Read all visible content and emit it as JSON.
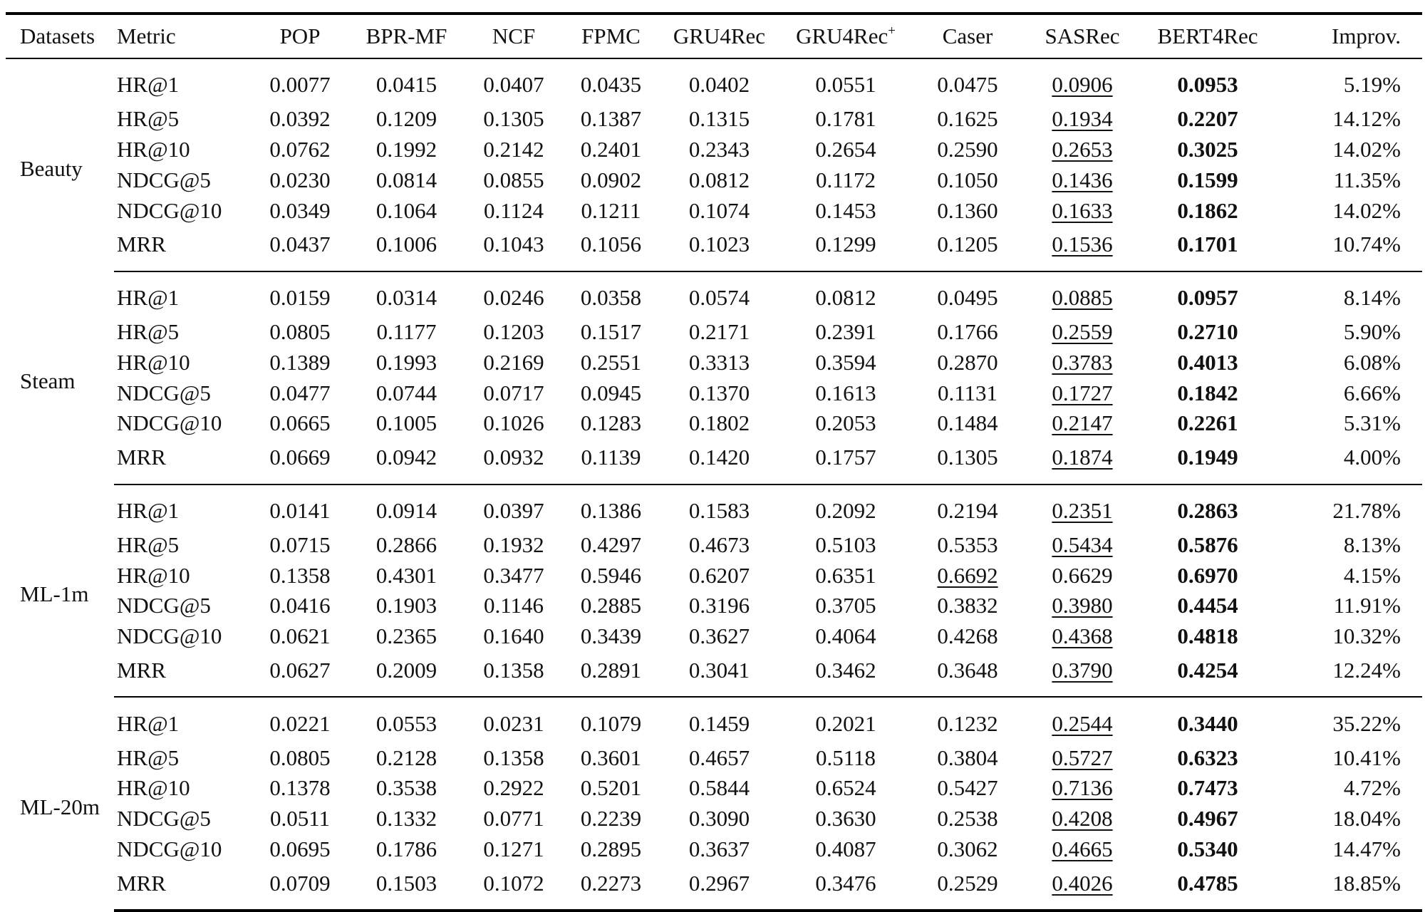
{
  "columns": [
    "Datasets",
    "Metric",
    "POP",
    "BPR-MF",
    "NCF",
    "FPMC",
    "GRU4Rec",
    "GRU4Rec",
    "Caser",
    "SASRec",
    "BERT4Rec",
    "Improv."
  ],
  "gru4rec_plus_superscript": "+",
  "groups": [
    {
      "dataset": "Beauty",
      "rows": [
        {
          "metric": "HR@1",
          "values": [
            "0.0077",
            "0.0415",
            "0.0407",
            "0.0435",
            "0.0402",
            "0.0551",
            "0.0475",
            "0.0906",
            "0.0953"
          ],
          "improv": "5.19%",
          "underline": 7
        },
        {
          "metric": "HR@5",
          "values": [
            "0.0392",
            "0.1209",
            "0.1305",
            "0.1387",
            "0.1315",
            "0.1781",
            "0.1625",
            "0.1934",
            "0.2207"
          ],
          "improv": "14.12%",
          "underline": 7
        },
        {
          "metric": "HR@10",
          "values": [
            "0.0762",
            "0.1992",
            "0.2142",
            "0.2401",
            "0.2343",
            "0.2654",
            "0.2590",
            "0.2653",
            "0.3025"
          ],
          "improv": "14.02%",
          "underline": 7
        },
        {
          "metric": "NDCG@5",
          "values": [
            "0.0230",
            "0.0814",
            "0.0855",
            "0.0902",
            "0.0812",
            "0.1172",
            "0.1050",
            "0.1436",
            "0.1599"
          ],
          "improv": "11.35%",
          "underline": 7
        },
        {
          "metric": "NDCG@10",
          "values": [
            "0.0349",
            "0.1064",
            "0.1124",
            "0.1211",
            "0.1074",
            "0.1453",
            "0.1360",
            "0.1633",
            "0.1862"
          ],
          "improv": "14.02%",
          "underline": 7
        },
        {
          "metric": "MRR",
          "values": [
            "0.0437",
            "0.1006",
            "0.1043",
            "0.1056",
            "0.1023",
            "0.1299",
            "0.1205",
            "0.1536",
            "0.1701"
          ],
          "improv": "10.74%",
          "underline": 7
        }
      ]
    },
    {
      "dataset": "Steam",
      "rows": [
        {
          "metric": "HR@1",
          "values": [
            "0.0159",
            "0.0314",
            "0.0246",
            "0.0358",
            "0.0574",
            "0.0812",
            "0.0495",
            "0.0885",
            "0.0957"
          ],
          "improv": "8.14%",
          "underline": 7
        },
        {
          "metric": "HR@5",
          "values": [
            "0.0805",
            "0.1177",
            "0.1203",
            "0.1517",
            "0.2171",
            "0.2391",
            "0.1766",
            "0.2559",
            "0.2710"
          ],
          "improv": "5.90%",
          "underline": 7
        },
        {
          "metric": "HR@10",
          "values": [
            "0.1389",
            "0.1993",
            "0.2169",
            "0.2551",
            "0.3313",
            "0.3594",
            "0.2870",
            "0.3783",
            "0.4013"
          ],
          "improv": "6.08%",
          "underline": 7
        },
        {
          "metric": "NDCG@5",
          "values": [
            "0.0477",
            "0.0744",
            "0.0717",
            "0.0945",
            "0.1370",
            "0.1613",
            "0.1131",
            "0.1727",
            "0.1842"
          ],
          "improv": "6.66%",
          "underline": 7
        },
        {
          "metric": "NDCG@10",
          "values": [
            "0.0665",
            "0.1005",
            "0.1026",
            "0.1283",
            "0.1802",
            "0.2053",
            "0.1484",
            "0.2147",
            "0.2261"
          ],
          "improv": "5.31%",
          "underline": 7
        },
        {
          "metric": "MRR",
          "values": [
            "0.0669",
            "0.0942",
            "0.0932",
            "0.1139",
            "0.1420",
            "0.1757",
            "0.1305",
            "0.1874",
            "0.1949"
          ],
          "improv": "4.00%",
          "underline": 7
        }
      ]
    },
    {
      "dataset": "ML-1m",
      "rows": [
        {
          "metric": "HR@1",
          "values": [
            "0.0141",
            "0.0914",
            "0.0397",
            "0.1386",
            "0.1583",
            "0.2092",
            "0.2194",
            "0.2351",
            "0.2863"
          ],
          "improv": "21.78%",
          "underline": 7
        },
        {
          "metric": "HR@5",
          "values": [
            "0.0715",
            "0.2866",
            "0.1932",
            "0.4297",
            "0.4673",
            "0.5103",
            "0.5353",
            "0.5434",
            "0.5876"
          ],
          "improv": "8.13%",
          "underline": 7
        },
        {
          "metric": "HR@10",
          "values": [
            "0.1358",
            "0.4301",
            "0.3477",
            "0.5946",
            "0.6207",
            "0.6351",
            "0.6692",
            "0.6629",
            "0.6970"
          ],
          "improv": "4.15%",
          "underline": 6
        },
        {
          "metric": "NDCG@5",
          "values": [
            "0.0416",
            "0.1903",
            "0.1146",
            "0.2885",
            "0.3196",
            "0.3705",
            "0.3832",
            "0.3980",
            "0.4454"
          ],
          "improv": "11.91%",
          "underline": 7
        },
        {
          "metric": "NDCG@10",
          "values": [
            "0.0621",
            "0.2365",
            "0.1640",
            "0.3439",
            "0.3627",
            "0.4064",
            "0.4268",
            "0.4368",
            "0.4818"
          ],
          "improv": "10.32%",
          "underline": 7
        },
        {
          "metric": "MRR",
          "values": [
            "0.0627",
            "0.2009",
            "0.1358",
            "0.2891",
            "0.3041",
            "0.3462",
            "0.3648",
            "0.3790",
            "0.4254"
          ],
          "improv": "12.24%",
          "underline": 7
        }
      ]
    },
    {
      "dataset": "ML-20m",
      "rows": [
        {
          "metric": "HR@1",
          "values": [
            "0.0221",
            "0.0553",
            "0.0231",
            "0.1079",
            "0.1459",
            "0.2021",
            "0.1232",
            "0.2544",
            "0.3440"
          ],
          "improv": "35.22%",
          "underline": 7
        },
        {
          "metric": "HR@5",
          "values": [
            "0.0805",
            "0.2128",
            "0.1358",
            "0.3601",
            "0.4657",
            "0.5118",
            "0.3804",
            "0.5727",
            "0.6323"
          ],
          "improv": "10.41%",
          "underline": 7
        },
        {
          "metric": "HR@10",
          "values": [
            "0.1378",
            "0.3538",
            "0.2922",
            "0.5201",
            "0.5844",
            "0.6524",
            "0.5427",
            "0.7136",
            "0.7473"
          ],
          "improv": "4.72%",
          "underline": 7
        },
        {
          "metric": "NDCG@5",
          "values": [
            "0.0511",
            "0.1332",
            "0.0771",
            "0.2239",
            "0.3090",
            "0.3630",
            "0.2538",
            "0.4208",
            "0.4967"
          ],
          "improv": "18.04%",
          "underline": 7
        },
        {
          "metric": "NDCG@10",
          "values": [
            "0.0695",
            "0.1786",
            "0.1271",
            "0.2895",
            "0.3637",
            "0.4087",
            "0.3062",
            "0.4665",
            "0.5340"
          ],
          "improv": "14.47%",
          "underline": 7
        },
        {
          "metric": "MRR",
          "values": [
            "0.0709",
            "0.1503",
            "0.1072",
            "0.2273",
            "0.2967",
            "0.3476",
            "0.2529",
            "0.4026",
            "0.4785"
          ],
          "improv": "18.85%",
          "underline": 7
        }
      ]
    }
  ]
}
